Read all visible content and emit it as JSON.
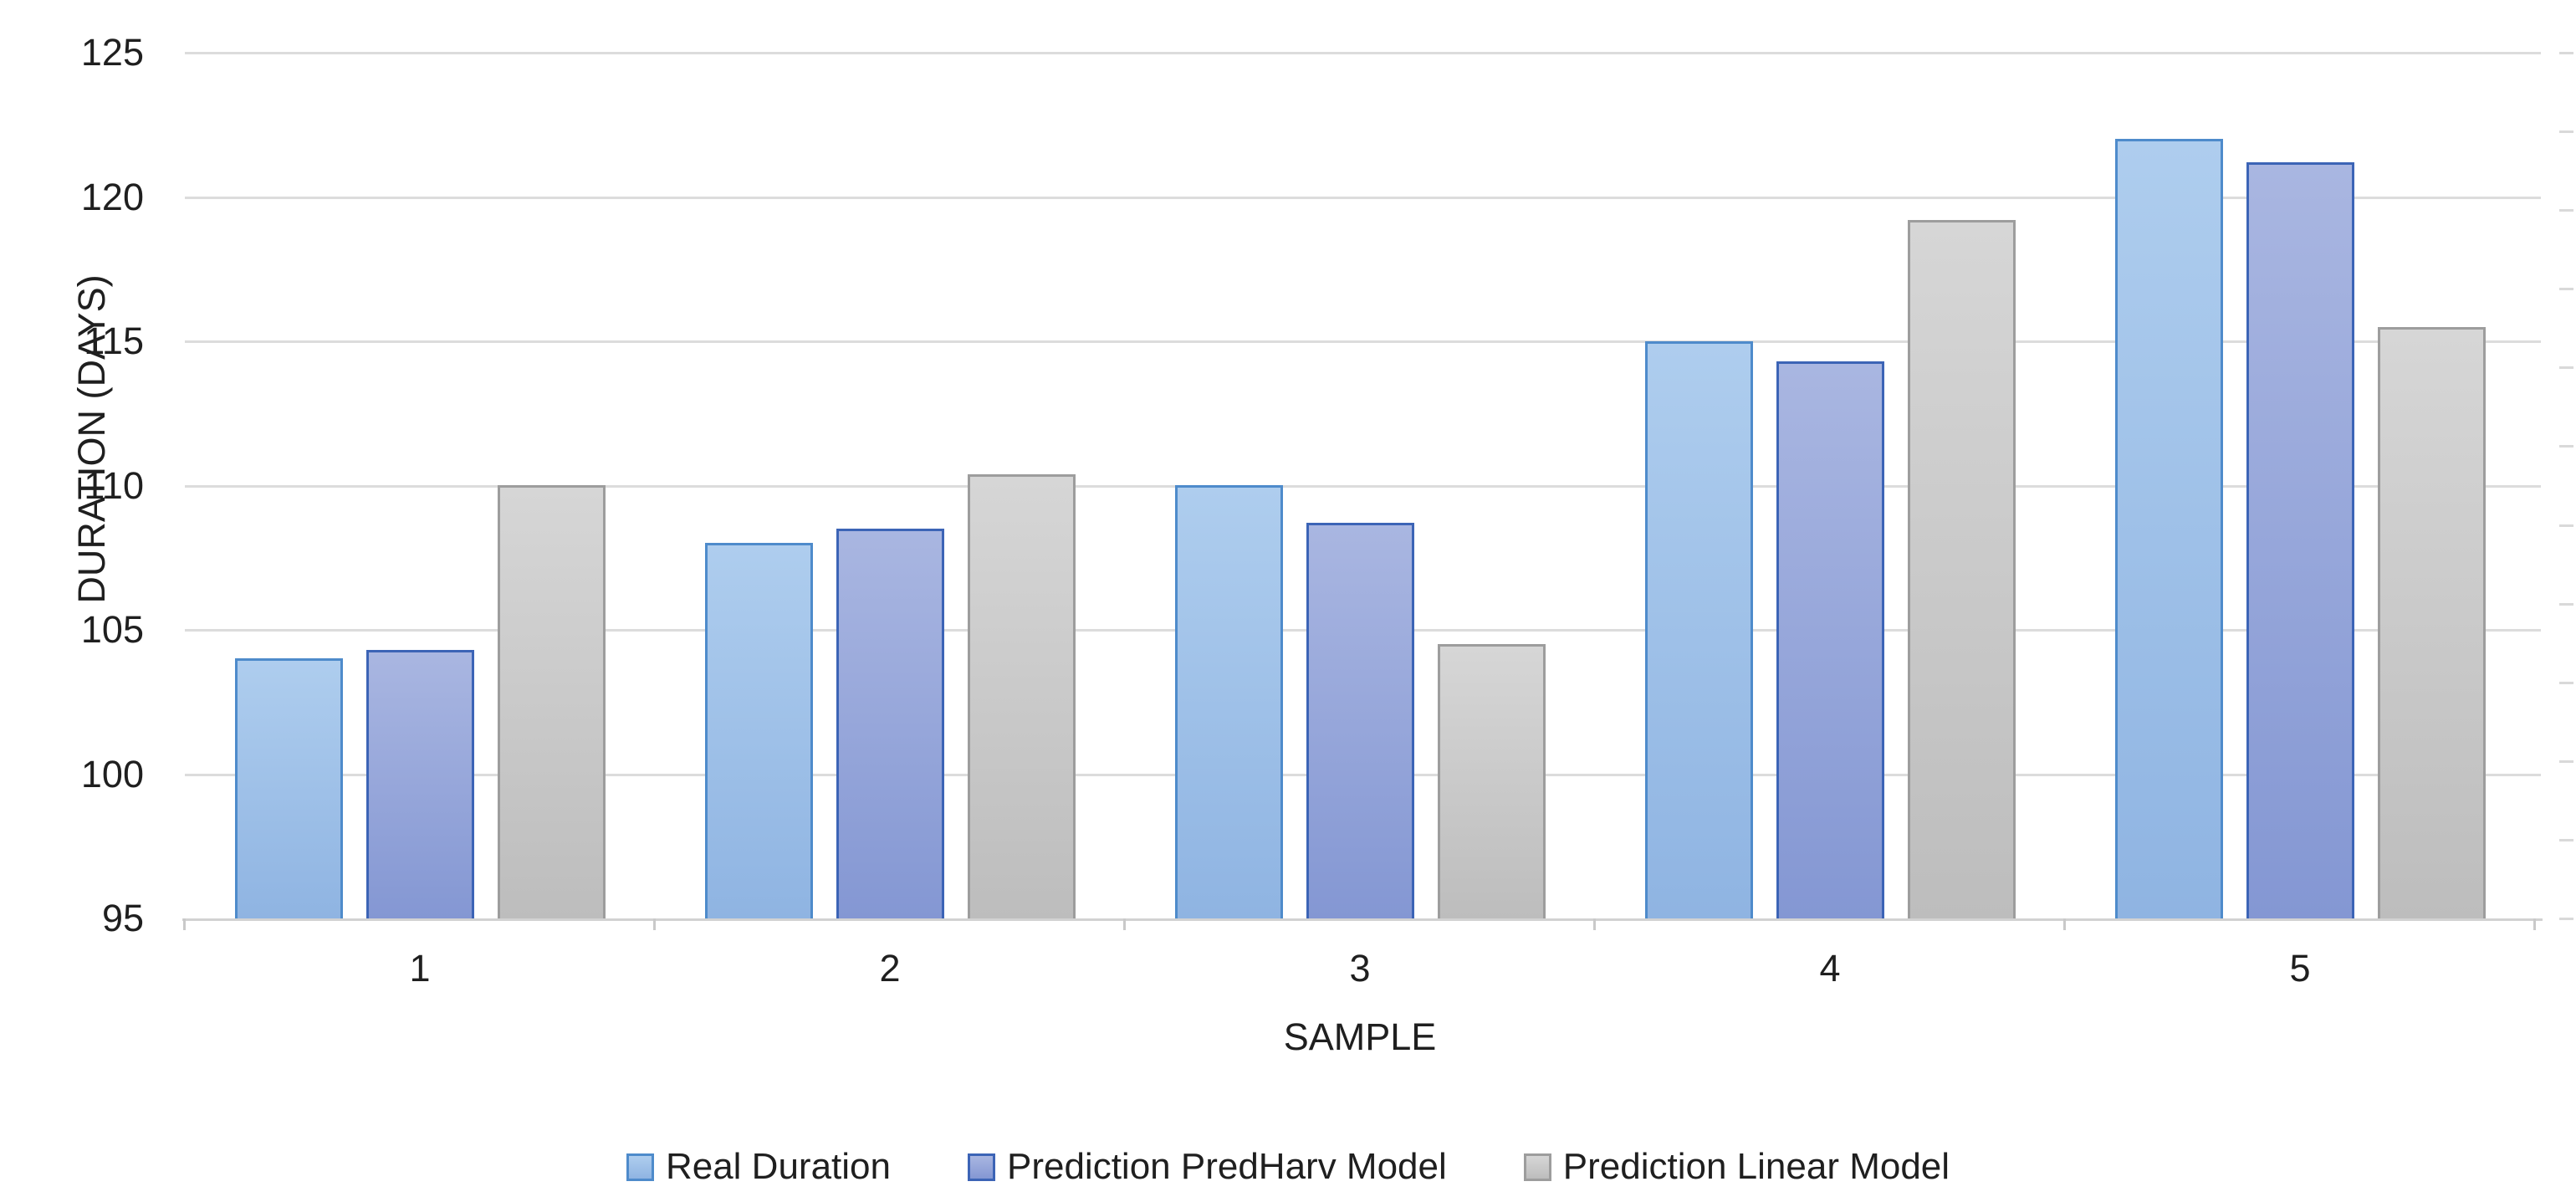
{
  "chart_data": {
    "type": "bar",
    "title": "",
    "categories": [
      "1",
      "2",
      "3",
      "4",
      "5"
    ],
    "series": [
      {
        "name": "Real Duration",
        "values": [
          104,
          108,
          110,
          115,
          122
        ],
        "fill_top": "#aecdee",
        "fill_bottom": "#8fb4e2",
        "border": "#4e8bcb"
      },
      {
        "name": "Prediction PredHarv Model",
        "values": [
          104.3,
          108.5,
          108.7,
          114.3,
          121.2
        ],
        "fill_top": "#a9b6e1",
        "fill_bottom": "#8497d3",
        "border": "#3c64b6"
      },
      {
        "name": "Prediction Linear Model",
        "values": [
          110,
          110.4,
          104.5,
          119.2,
          115.5
        ],
        "fill_top": "#d6d6d6",
        "fill_bottom": "#bdbdbd",
        "border": "#9d9d9d"
      }
    ],
    "xlabel": "SAMPLE",
    "ylabel": "DURATION (DAYS)",
    "ylim": [
      95,
      125
    ],
    "ytick_step": 5,
    "yticks": [
      "125",
      "120",
      "115",
      "110",
      "105",
      "100",
      "95"
    ],
    "grid": true,
    "gridline_color": "#dcdcdc",
    "axis_line_color": "#d2d2d2",
    "text_color": "#1f1f1f",
    "legend_position": "bottom",
    "background": "#ffffff"
  }
}
